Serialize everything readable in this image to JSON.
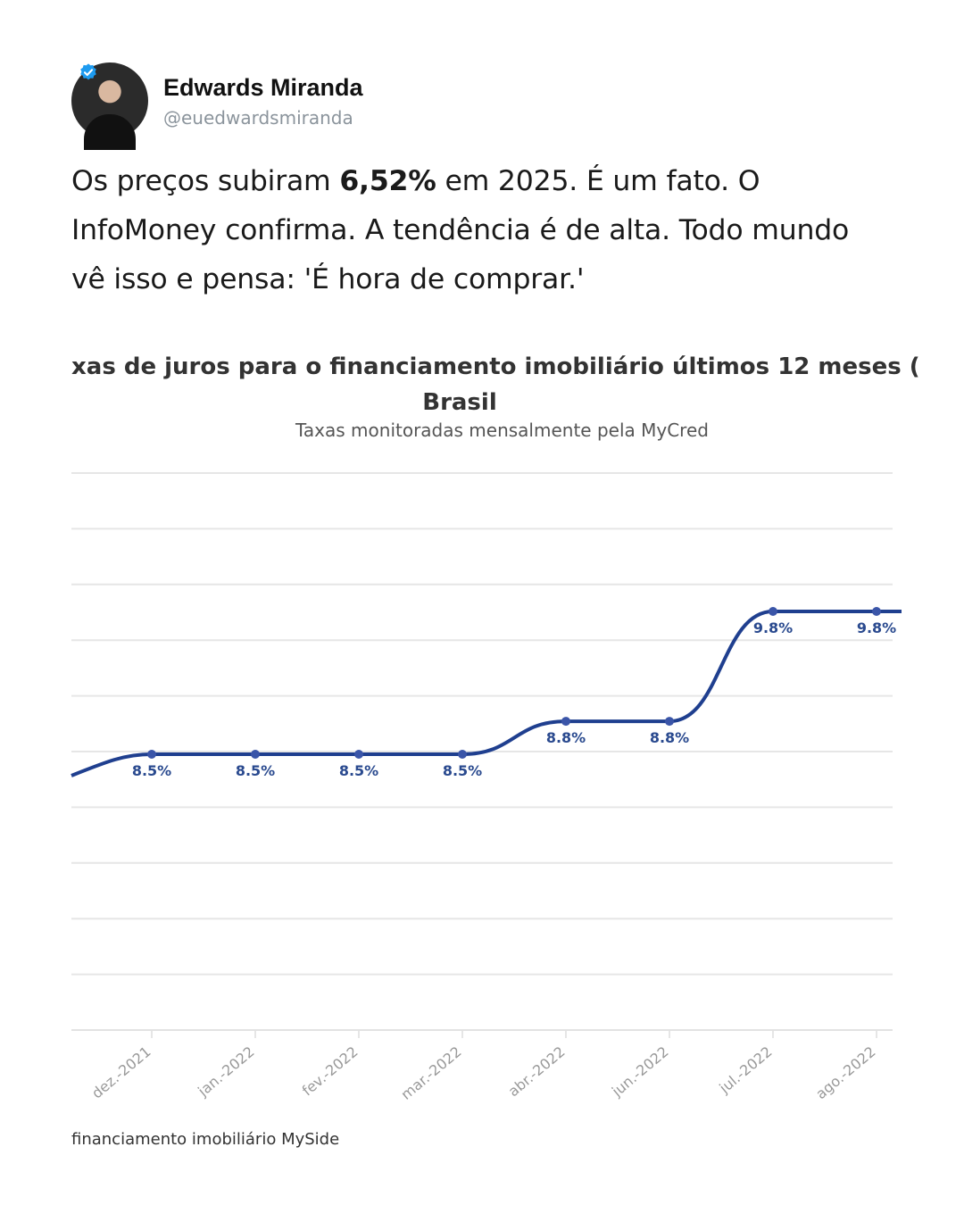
{
  "author": {
    "name": "Edwards Miranda",
    "handle": "@euedwardsmiranda",
    "verified_color": "#1d9bf0"
  },
  "tweet": {
    "before": "Os preços subiram ",
    "highlight": "6,52%",
    "after": " em 2025. É um fato. O InfoMoney confirma. A tendência é de alta. Todo mundo vê isso e pensa: 'É hora de comprar.'"
  },
  "chart_data": {
    "type": "line",
    "title_line1": "xas de juros para o financiamento imobiliário últimos 12 meses (",
    "title_line2": "Brasil",
    "subtitle": "Taxas monitoradas mensalmente pela MyCred",
    "categories": [
      "dez.-2021",
      "jan.-2022",
      "fev.-2022",
      "mar.-2022",
      "abr.-2022",
      "jun.-2022",
      "jul.-2022",
      "ago.-2022"
    ],
    "values": [
      8.5,
      8.5,
      8.5,
      8.5,
      8.8,
      8.8,
      9.8,
      9.8
    ],
    "data_labels": [
      "8.5%",
      "8.5%",
      "8.5%",
      "8.5%",
      "8.8%",
      "8.8%",
      "9.8%",
      "9.8%"
    ],
    "line_color": "#1f3f8f",
    "grid": true
  },
  "caption": "financiamento imobiliário MySide"
}
